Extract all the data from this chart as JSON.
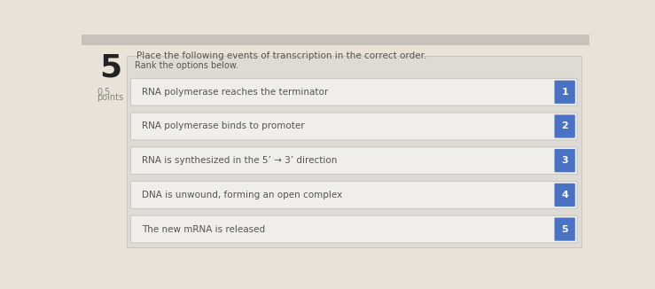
{
  "question_number": "5",
  "question_text": "Place the following events of transcription in the correct order.",
  "points_line1": "0.5",
  "points_line2": "points",
  "instruction": "Rank the options below.",
  "items": [
    {
      "text": "RNA polymerase reaches the terminator",
      "rank": "1"
    },
    {
      "text": "RNA polymerase binds to promoter",
      "rank": "2"
    },
    {
      "text": "RNA is synthesized in the 5’ → 3’ direction",
      "rank": "3"
    },
    {
      "text": "DNA is unwound, forming an open complex",
      "rank": "4"
    },
    {
      "text": "The new mRNA is released",
      "rank": "5"
    }
  ],
  "bg_color": "#e8e2d9",
  "panel_bg": "#dedad4",
  "box_bg": "#f0eeeb",
  "box_border": "#c8c4be",
  "badge_color": "#4a72c4",
  "badge_text_color": "#ffffff",
  "item_text_color": "#555550",
  "question_text_color": "#555550",
  "question_num_color": "#222222",
  "points_color": "#888880",
  "instruction_color": "#555550",
  "top_bar_color": "#c8c4be",
  "fig_width": 7.39,
  "fig_height": 3.26,
  "dpi": 100
}
